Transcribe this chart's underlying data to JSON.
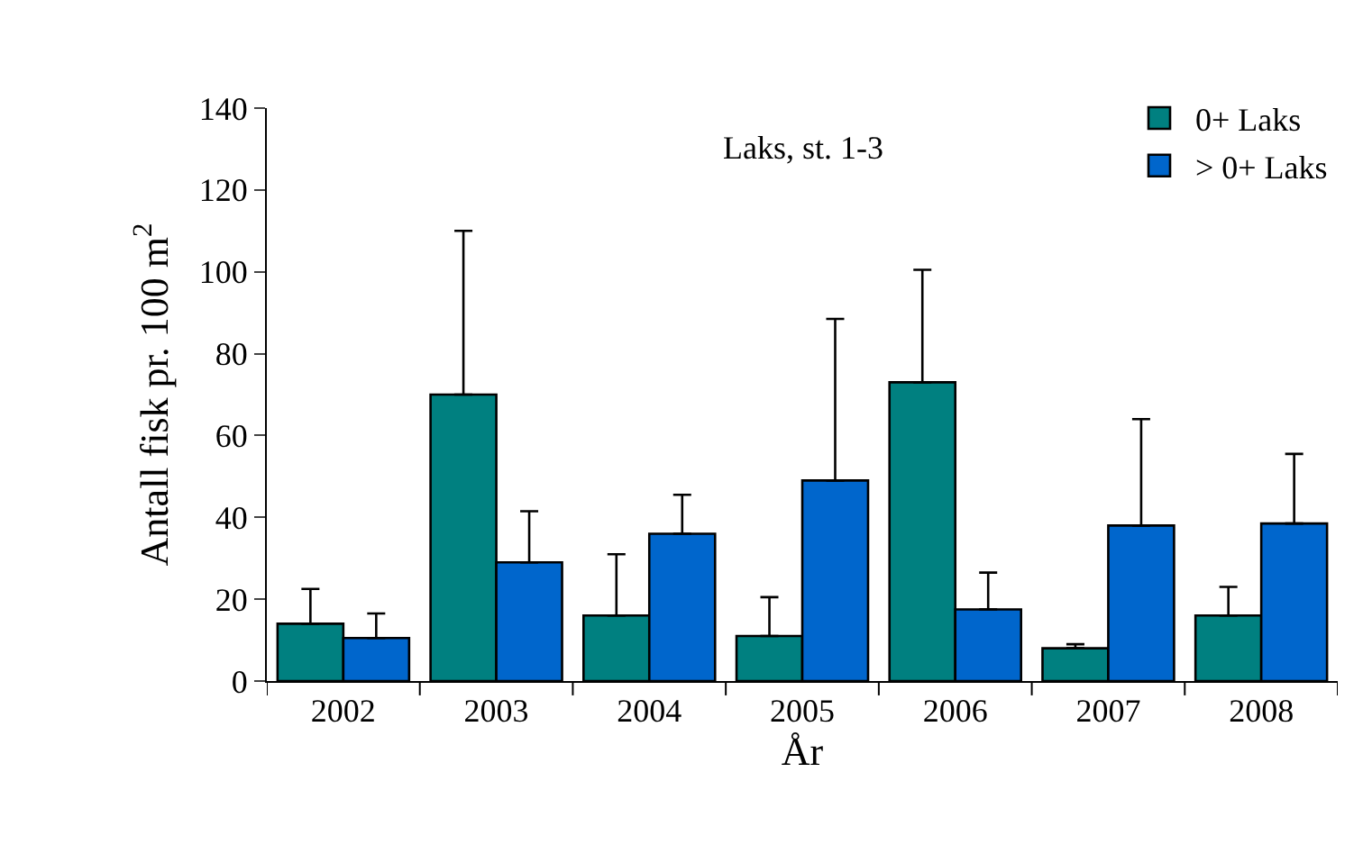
{
  "chart_data": {
    "type": "bar",
    "title": "Laks, st. 1-3",
    "xlabel": "År",
    "ylabel": "Antall fisk pr. 100 m$^{2}$",
    "categories": [
      "2002",
      "2003",
      "2004",
      "2005",
      "2006",
      "2007",
      "2008"
    ],
    "series": [
      {
        "name": "0+ Laks",
        "color": "#008080",
        "values": [
          14,
          70,
          16,
          11,
          73,
          8,
          16
        ],
        "errors": [
          [
            14,
            22.5
          ],
          [
            70,
            110
          ],
          [
            16,
            31
          ],
          [
            11,
            20.5
          ],
          [
            73,
            100.5
          ],
          [
            8,
            9
          ],
          [
            16,
            23
          ]
        ]
      },
      {
        "name": "> 0+ Laks",
        "color": "#0066cc",
        "values": [
          10.5,
          29,
          36,
          49,
          17.5,
          38,
          38.5
        ],
        "errors": [
          [
            10.5,
            16.5
          ],
          [
            29,
            41.5
          ],
          [
            36,
            45.5
          ],
          [
            49,
            88.5
          ],
          [
            17.5,
            26.5
          ],
          [
            38,
            64
          ],
          [
            38.5,
            55.5
          ]
        ]
      }
    ],
    "ylim": [
      0,
      140
    ],
    "yticks": [
      0,
      20,
      40,
      60,
      80,
      100,
      120,
      140
    ],
    "legend": "top right"
  }
}
